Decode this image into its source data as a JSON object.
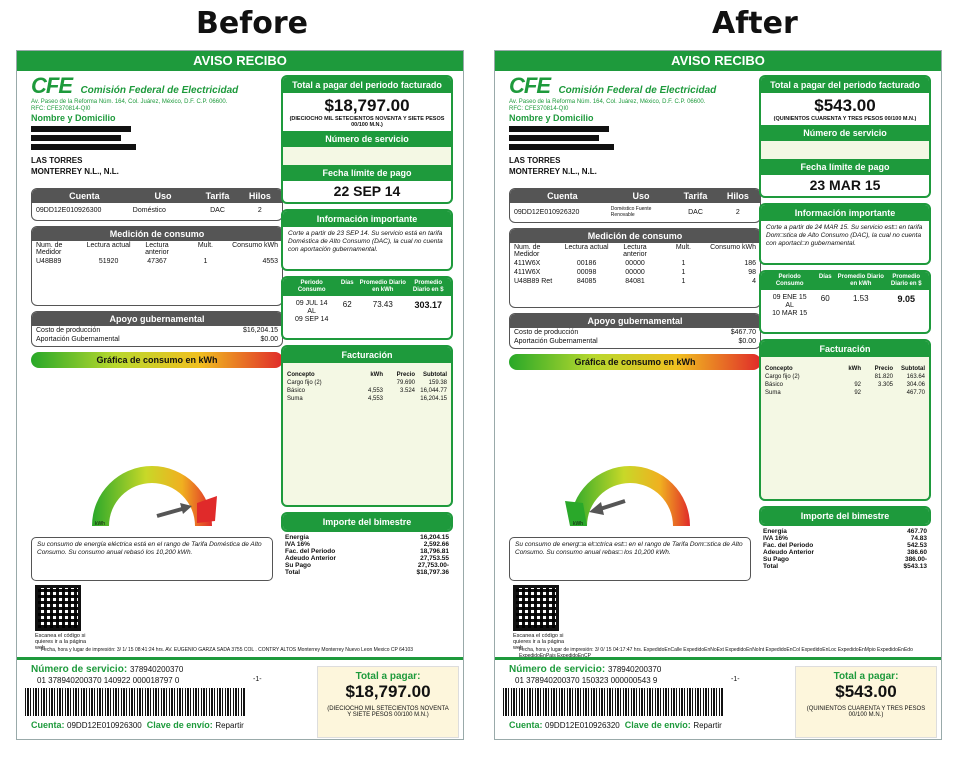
{
  "headings": {
    "before": "Before",
    "after": "After"
  },
  "common": {
    "top_bar": "AVISO RECIBO",
    "logo": "CFE",
    "company": "Comisión Federal de Electricidad",
    "address": "Av. Paseo de la Reforma Núm. 164, Col. Juárez, México, D.F. C.P. 06600.",
    "rfc": "RFC: CFE370814-QI0",
    "name_label": "Nombre y Domicilio",
    "city1": "LAS TORRES",
    "city2": "MONTERREY N.L., N.L.",
    "total_label": "Total a pagar del periodo facturado",
    "service_label": "Número de servicio",
    "due_label": "Fecha límite de pago",
    "info_label": "Información importante",
    "account_headers": [
      "Cuenta",
      "Uso",
      "Tarifa",
      "Hilos"
    ],
    "measure_label": "Medición de consumo",
    "measure_headers": [
      "Num. de Medidor",
      "Lectura actual",
      "Lectura anterior",
      "Mult.",
      "Consumo kWh"
    ],
    "period_headers": [
      "Periodo Consumo",
      "Días",
      "Promedio Diario en kWh",
      "Promedio Diario en $"
    ],
    "support_label": "Apoyo gubernamental",
    "cost_label": "Costo de producción",
    "aport_label": "Aportación Gubernamental",
    "graph_label": "Gráfica de consumo en kWh",
    "billing_label": "Facturación",
    "billing_headers": [
      "Concepto",
      "kWh",
      "Precio",
      "Subtotal"
    ],
    "import_label": "Importe del bimestre",
    "qr_text": "Escanea el código si quieres ir a la página web",
    "svc_label": "Número de servicio:",
    "svc_number": "378940200370",
    "pay_label": "Total a pagar:",
    "account_label": "Cuenta:",
    "key_label": "Clave de envío:",
    "key_value": "Repartir",
    "page_mark": "-1-",
    "kwh": "kWh"
  },
  "before": {
    "total": "$18,797.00",
    "total_words": "(DIECIOCHO MIL SETECIENTOS NOVENTA Y SIETE PESOS 00/100 M.N.)",
    "due": "22 SEP 14",
    "account": {
      "cuenta": "09DD12E010926300",
      "uso": "Doméstico",
      "tarifa": "DAC",
      "hilos": "2"
    },
    "meter": {
      "num": "U48B89",
      "actual": "51920",
      "anterior": "47367",
      "mult": "1",
      "consumo": "4553"
    },
    "info": "Corte a partir de 23 SEP 14. Su servicio está en tarifa Doméstica de Alto Consumo (DAC), la cual no cuenta con aportación gubernamental.",
    "period": {
      "from": "09 JUL 14",
      "al": "AL",
      "to": "09 SEP 14",
      "dias": "62",
      "kwh": "73.43",
      "pesos": "303.17"
    },
    "cost": "$16,204.15",
    "aport": "$0.00",
    "billing": [
      {
        "c": "Cargo fijo (2)",
        "k": "",
        "p": "79.690",
        "s": "159.38"
      },
      {
        "c": "Básico",
        "k": "4,553",
        "p": "3.524",
        "s": "16,044.77"
      },
      {
        "c": "Suma",
        "k": "4,553",
        "p": "",
        "s": "16,204.15"
      }
    ],
    "imports": [
      {
        "l": "Energía",
        "v": "16,204.15"
      },
      {
        "l": "IVA 16%",
        "v": "2,592.66"
      },
      {
        "l": "Fac. del Periodo",
        "v": "18,796.81"
      },
      {
        "l": "Adeudo Anterior",
        "v": "27,753.55"
      },
      {
        "l": "Su Pago",
        "v": "27,753.00-"
      },
      {
        "l": "Total",
        "v": "$18,797.36"
      }
    ],
    "note": "Su consumo de energía eléctrica está en el rango de Tarifa Doméstica de Alto Consumo. Su consumo anual rebasó los 10,200 kWh.",
    "footer": "Fecha, hora y lugar de impresión: 3/ 1/ 15 08:41:24 hrs. AV. EUGENIO GARZA SADA 3755 COL . CONTRY ALTOS Monterrey Monterrey Nuevo Leon Mexico CP 64103",
    "barcode_num": "01 378940200370 140922 000018797 0",
    "pay_amount": "$18,797.00",
    "pay_words": "(DIECIOCHO MIL SETECIENTOS NOVENTA Y SIETE PESOS 00/100 M.N.)",
    "account_bottom": "09DD12E010926300"
  },
  "after": {
    "total": "$543.00",
    "total_words": "(QUINIENTOS CUARENTA Y TRES PESOS 00/100 M.N.)",
    "due": "23 MAR 15",
    "account": {
      "cuenta": "09DD12E010926320",
      "uso": "Doméstico Fuente Renovable",
      "tarifa": "DAC",
      "hilos": "2"
    },
    "meters": [
      {
        "num": "411W6X",
        "actual": "00186",
        "anterior": "00000",
        "mult": "1",
        "consumo": "186"
      },
      {
        "num": "411W6X",
        "actual": "00098",
        "anterior": "00000",
        "mult": "1",
        "consumo": "98"
      },
      {
        "num": "U48B89 Ret",
        "actual": "84085",
        "anterior": "84081",
        "mult": "1",
        "consumo": "4"
      }
    ],
    "info": "Corte a partir de 24 MAR 15. Su servicio est□ en tarifa Dom□stica de Alto Consumo (DAC), la cual no cuenta con aportaci□n gubernamental.",
    "period": {
      "from": "09 ENE 15",
      "al": "AL",
      "to": "10 MAR 15",
      "dias": "60",
      "kwh": "1.53",
      "pesos": "9.05"
    },
    "cost": "$467.70",
    "aport": "$0.00",
    "billing": [
      {
        "c": "Cargo fijo (2)",
        "k": "",
        "p": "81.820",
        "s": "163.64"
      },
      {
        "c": "Básico",
        "k": "92",
        "p": "3.305",
        "s": "304.06"
      },
      {
        "c": "Suma",
        "k": "92",
        "p": "",
        "s": "467.70"
      }
    ],
    "imports": [
      {
        "l": "Energía",
        "v": "467.70"
      },
      {
        "l": "IVA 16%",
        "v": "74.83"
      },
      {
        "l": "Fac. del Periodo",
        "v": "542.53"
      },
      {
        "l": "Adeudo Anterior",
        "v": "386.60"
      },
      {
        "l": "Su Pago",
        "v": "386.00-"
      },
      {
        "l": "Total",
        "v": "$543.13"
      }
    ],
    "note": "Su consumo de energ□a el□ctrica est□ en el rango de Tarifa Dom□stica de Alto Consumo. Su consumo anual rebas□ los 10,200 kWh.",
    "footer": "Fecha, hora y lugar de impresión: 3/ 0/ 15 04:17:47 hrs. ExpedidoEnCalle ExpedidoEnNoExt ExpedidoEnNoInt ExpedidoEnCol ExpedidoEnLoc ExpedidoEnMpio ExpedidoEnEdo ExpedidoEnPais ExpedidoEnCP",
    "barcode_num": "01 378940200370 150323 000000543 9",
    "pay_amount": "$543.00",
    "pay_words": "(QUINIENTOS CUARENTA Y TRES PESOS 00/100 M.N.)",
    "account_bottom": "09DD12E010926320"
  },
  "colors": {
    "green": "#1e9a3c",
    "grey": "#555555",
    "cream": "#fdf6dc"
  }
}
